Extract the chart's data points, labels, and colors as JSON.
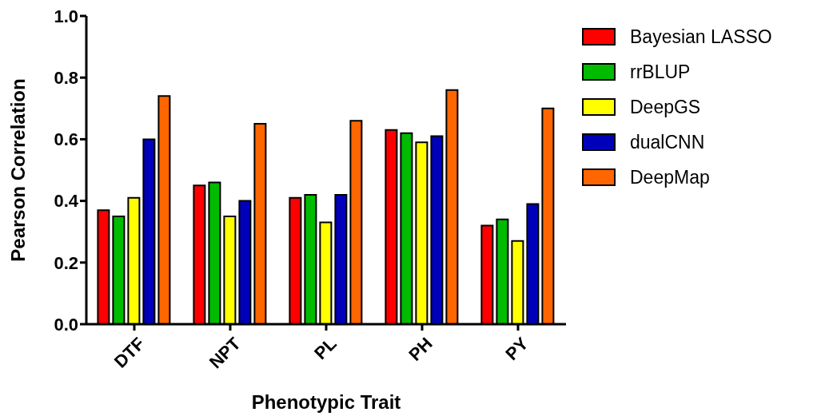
{
  "chart_data": {
    "type": "bar",
    "xlabel": "Phenotypic Trait",
    "ylabel": "Pearson Correlation",
    "categories": [
      "DTF",
      "NPT",
      "PL",
      "PH",
      "PY"
    ],
    "series": [
      {
        "name": "Bayesian LASSO",
        "color": "#ff0000",
        "values": [
          0.37,
          0.45,
          0.41,
          0.63,
          0.32
        ]
      },
      {
        "name": "rrBLUP",
        "color": "#00bb00",
        "values": [
          0.35,
          0.46,
          0.42,
          0.62,
          0.34
        ]
      },
      {
        "name": "DeepGS",
        "color": "#ffff00",
        "values": [
          0.41,
          0.35,
          0.33,
          0.59,
          0.27
        ]
      },
      {
        "name": "dualCNN",
        "color": "#0000bb",
        "values": [
          0.6,
          0.4,
          0.42,
          0.61,
          0.39
        ]
      },
      {
        "name": "DeepMap",
        "color": "#ff6600",
        "values": [
          0.74,
          0.65,
          0.66,
          0.76,
          0.7
        ]
      }
    ],
    "ylim": [
      0,
      1.0
    ],
    "yticks": [
      {
        "value": 0,
        "label": "0.0"
      },
      0.2,
      0.4,
      0.6,
      0.8,
      {
        "value": 1,
        "label": "1.0"
      }
    ],
    "grid": false,
    "legend": "top right"
  }
}
